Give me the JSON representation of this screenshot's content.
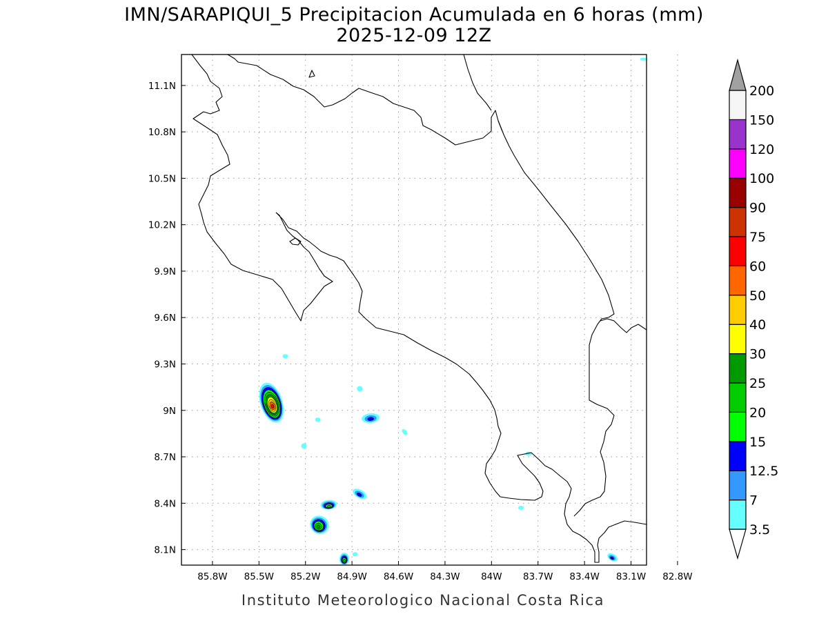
{
  "title": {
    "line1": "IMN/SARAPIQUI_5 Precipitacion Acumulada en 6 horas (mm)",
    "line2": "2025-12-09 12Z"
  },
  "footer": "Instituto Meteorologico Nacional Costa Rica",
  "map": {
    "lon_range": [
      -86.0,
      -83.0
    ],
    "lat_range": [
      8.0,
      11.3
    ],
    "lon_ticks": [
      {
        "value": -85.8,
        "label": "85.8W"
      },
      {
        "value": -85.5,
        "label": "85.5W"
      },
      {
        "value": -85.2,
        "label": "85.2W"
      },
      {
        "value": -84.9,
        "label": "84.9W"
      },
      {
        "value": -84.6,
        "label": "84.6W"
      },
      {
        "value": -84.3,
        "label": "84.3W"
      },
      {
        "value": -84.0,
        "label": "84W"
      },
      {
        "value": -83.7,
        "label": "83.7W"
      },
      {
        "value": -83.4,
        "label": "83.4W"
      },
      {
        "value": -83.1,
        "label": "83.1W"
      },
      {
        "value": -82.8,
        "label": "82.8W"
      }
    ],
    "lat_ticks": [
      {
        "value": 11.1,
        "label": "11.1N"
      },
      {
        "value": 10.8,
        "label": "10.8N"
      },
      {
        "value": 10.5,
        "label": "10.5N"
      },
      {
        "value": 10.2,
        "label": "10.2N"
      },
      {
        "value": 9.9,
        "label": "9.9N"
      },
      {
        "value": 9.6,
        "label": "9.6N"
      },
      {
        "value": 9.3,
        "label": "9.3N"
      },
      {
        "value": 9.0,
        "label": "9N"
      },
      {
        "value": 8.7,
        "label": "8.7N"
      },
      {
        "value": 8.4,
        "label": "8.4N"
      },
      {
        "value": 8.1,
        "label": "8.1N"
      }
    ],
    "grid": true
  },
  "colorbar": {
    "levels": [
      {
        "label": "3.5",
        "color": "#66ffff"
      },
      {
        "label": "7",
        "color": "#3399ff"
      },
      {
        "label": "12.5",
        "color": "#0000ff"
      },
      {
        "label": "15",
        "color": "#00ff00"
      },
      {
        "label": "20",
        "color": "#00cc00"
      },
      {
        "label": "25",
        "color": "#009900"
      },
      {
        "label": "30",
        "color": "#ffff00"
      },
      {
        "label": "40",
        "color": "#ffcc00"
      },
      {
        "label": "50",
        "color": "#ff6600"
      },
      {
        "label": "60",
        "color": "#ff0000"
      },
      {
        "label": "75",
        "color": "#cc3300"
      },
      {
        "label": "90",
        "color": "#990000"
      },
      {
        "label": "100",
        "color": "#ff00ff"
      },
      {
        "label": "120",
        "color": "#9933cc"
      },
      {
        "label": "150",
        "color": "#f5f5f5"
      },
      {
        "label": "200",
        "color": "#a0a0a0"
      }
    ]
  },
  "precip_cells": [
    {
      "name": "nicoya-peninsula-cell",
      "lon": -85.42,
      "lat": 9.05,
      "rx": 16,
      "ry": 30,
      "rot": -18,
      "max_index": 9
    },
    {
      "name": "puntarenas-cell",
      "lon": -84.78,
      "lat": 8.95,
      "rx": 13,
      "ry": 7,
      "rot": -5,
      "max_index": 2
    },
    {
      "name": "osa-north-cell",
      "lon": -84.85,
      "lat": 8.46,
      "rx": 11,
      "ry": 6,
      "rot": 30,
      "max_index": 2
    },
    {
      "name": "osa-west-cell-a",
      "lon": -85.05,
      "lat": 8.39,
      "rx": 12,
      "ry": 7,
      "rot": -5,
      "max_index": 4
    },
    {
      "name": "osa-west-cell-b",
      "lon": -85.11,
      "lat": 8.26,
      "rx": 14,
      "ry": 13,
      "rot": 35,
      "max_index": 5
    },
    {
      "name": "south-coast-cell",
      "lon": -84.95,
      "lat": 8.04,
      "rx": 7,
      "ry": 9,
      "rot": 0,
      "max_index": 4
    },
    {
      "name": "panama-border-cell",
      "lon": -83.22,
      "lat": 8.05,
      "rx": 8,
      "ry": 5,
      "rot": 30,
      "max_index": 2
    },
    {
      "name": "small-cell-1",
      "lon": -85.33,
      "lat": 9.35,
      "rx": 4,
      "ry": 3,
      "rot": 0,
      "max_index": 0
    },
    {
      "name": "small-cell-2",
      "lon": -84.85,
      "lat": 9.14,
      "rx": 4,
      "ry": 4,
      "rot": 0,
      "max_index": 0
    },
    {
      "name": "small-cell-3",
      "lon": -84.56,
      "lat": 8.86,
      "rx": 5,
      "ry": 3,
      "rot": 50,
      "max_index": 0
    },
    {
      "name": "small-cell-4",
      "lon": -83.76,
      "lat": 8.72,
      "rx": 5,
      "ry": 3,
      "rot": 0,
      "max_index": 0
    },
    {
      "name": "small-cell-5",
      "lon": -83.81,
      "lat": 8.37,
      "rx": 4,
      "ry": 3,
      "rot": 0,
      "max_index": 0
    },
    {
      "name": "small-cell-6",
      "lon": -85.21,
      "lat": 8.77,
      "rx": 4,
      "ry": 4,
      "rot": 30,
      "max_index": 0
    },
    {
      "name": "small-cell-7",
      "lon": -84.88,
      "lat": 8.07,
      "rx": 4,
      "ry": 3,
      "rot": 0,
      "max_index": 0
    },
    {
      "name": "small-cell-8",
      "lon": -83.02,
      "lat": 11.27,
      "rx": 5,
      "ry": 2,
      "rot": 0,
      "max_index": 0
    },
    {
      "name": "small-cell-9",
      "lon": -85.12,
      "lat": 8.94,
      "rx": 4,
      "ry": 3,
      "rot": 0,
      "max_index": 0
    }
  ]
}
